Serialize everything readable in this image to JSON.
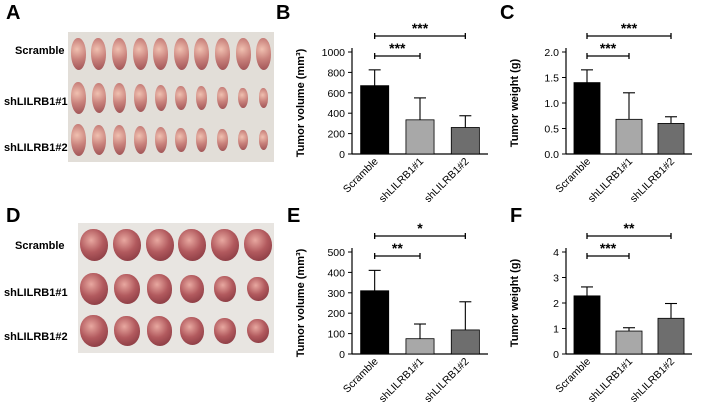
{
  "panels": {
    "A": {
      "letter": "A",
      "row_labels": [
        "Scramble",
        "shLILRB1#1",
        "shLILRB1#2"
      ],
      "counts": [
        10,
        10,
        10
      ]
    },
    "D": {
      "letter": "D",
      "row_labels": [
        "Scramble",
        "shLILRB1#1",
        "shLILRB1#2"
      ],
      "counts": [
        6,
        6,
        6
      ]
    }
  },
  "chart_data": [
    {
      "panel": "B",
      "type": "bar",
      "categories": [
        "Scramble",
        "shLILRB1#1",
        "shLILRB1#2"
      ],
      "values": [
        670,
        335,
        260
      ],
      "errors": [
        155,
        215,
        115
      ],
      "colors": [
        "#000000",
        "#a8a8a8",
        "#6e6e6e"
      ],
      "ylabel": "Tumor volume (mm³)",
      "ylim": [
        0,
        1000
      ],
      "yticks": [
        "0",
        "200",
        "400",
        "600",
        "800",
        "1000"
      ],
      "brackets": [
        {
          "from": 0,
          "to": 1,
          "label": "***"
        },
        {
          "from": 0,
          "to": 2,
          "label": "***"
        }
      ]
    },
    {
      "panel": "C",
      "type": "bar",
      "categories": [
        "Scramble",
        "shLILRB1#1",
        "shLILRB1#2"
      ],
      "values": [
        1.4,
        0.68,
        0.6
      ],
      "errors": [
        0.25,
        0.52,
        0.13
      ],
      "colors": [
        "#000000",
        "#a8a8a8",
        "#6e6e6e"
      ],
      "ylabel": "Tumor weight (g)",
      "ylim": [
        0,
        2.0
      ],
      "yticks": [
        "0.0",
        "0.5",
        "1.0",
        "1.5",
        "2.0"
      ],
      "brackets": [
        {
          "from": 0,
          "to": 1,
          "label": "***"
        },
        {
          "from": 0,
          "to": 2,
          "label": "***"
        }
      ]
    },
    {
      "panel": "E",
      "type": "bar",
      "categories": [
        "Scramble",
        "shLILRB1#1",
        "shLILRB1#2"
      ],
      "values": [
        310,
        75,
        118
      ],
      "errors": [
        100,
        72,
        138
      ],
      "colors": [
        "#000000",
        "#a8a8a8",
        "#6e6e6e"
      ],
      "ylabel": "Tumor volume (mm³)",
      "ylim": [
        0,
        500
      ],
      "yticks": [
        "0",
        "100",
        "200",
        "300",
        "400",
        "500"
      ],
      "brackets": [
        {
          "from": 0,
          "to": 1,
          "label": "**"
        },
        {
          "from": 0,
          "to": 2,
          "label": "*"
        }
      ]
    },
    {
      "panel": "F",
      "type": "bar",
      "categories": [
        "Scramble",
        "shLILRB1#1",
        "shLILRB1#2"
      ],
      "values": [
        2.28,
        0.9,
        1.4
      ],
      "errors": [
        0.35,
        0.13,
        0.58
      ],
      "colors": [
        "#000000",
        "#a8a8a8",
        "#6e6e6e"
      ],
      "ylabel": "Tumor weight (g)",
      "ylim": [
        0,
        4
      ],
      "yticks": [
        "0",
        "1",
        "2",
        "3",
        "4"
      ],
      "brackets": [
        {
          "from": 0,
          "to": 1,
          "label": "***"
        },
        {
          "from": 0,
          "to": 2,
          "label": "**"
        }
      ]
    }
  ]
}
